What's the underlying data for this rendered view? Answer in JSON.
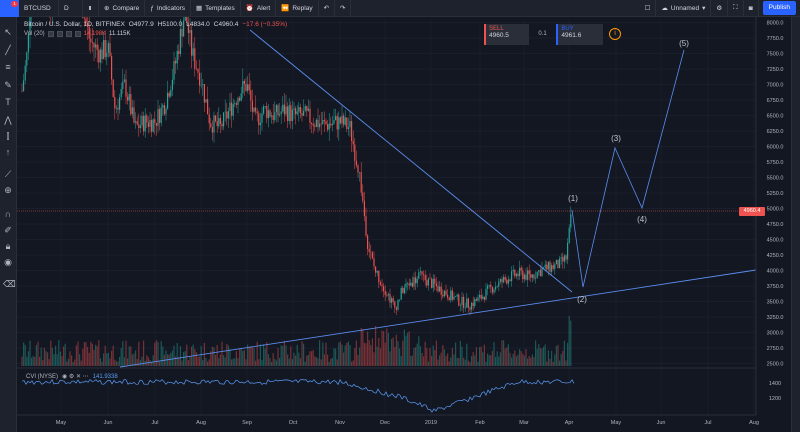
{
  "toolbar": {
    "logo_badge": "1",
    "symbol": "BTCUSD",
    "interval": "D",
    "compare": "Compare",
    "indicators": "Indicators",
    "templates": "Templates",
    "alert": "Alert",
    "replay": "Replay",
    "layout_name": "Unnamed",
    "publish": "Publish"
  },
  "legend": {
    "title": "Bitcoin / U.S. Dollar, 1D, BITFINEX",
    "o": "O4977.9",
    "h": "H5100.0",
    "l": "L4834.0",
    "c": "C4960.4",
    "change": "−17.6 (−0.35%)"
  },
  "vol_legend": {
    "label": "Vol (20)",
    "v1": "14.198K",
    "v2": "11.115K"
  },
  "cvi_legend": {
    "label": "CVI (NYSE)",
    "value": "141.9338"
  },
  "trade": {
    "sell_label": "SELL",
    "sell_price": "4960.5",
    "qty": "0.1",
    "buy_label": "BUY",
    "buy_price": "4961.6"
  },
  "price_label": "4960.4",
  "waves": [
    "(1)",
    "(2)",
    "(3)",
    "(4)",
    "(5)"
  ],
  "price_axis": [
    "8000.0",
    "7750.0",
    "7500.0",
    "7250.0",
    "7000.0",
    "6750.0",
    "6500.0",
    "6250.0",
    "6000.0",
    "5750.0",
    "5500.0",
    "5250.0",
    "5000.0",
    "4750.0",
    "4500.0",
    "4250.0",
    "4000.0",
    "3750.0",
    "3500.0",
    "3250.0",
    "3000.0",
    "2750.0",
    "2500.0"
  ],
  "cvi_axis": [
    "1400",
    "1200"
  ],
  "time_axis": [
    "May",
    "Jun",
    "Jul",
    "Aug",
    "Sep",
    "Oct",
    "Nov",
    "Dec",
    "2019",
    "Feb",
    "Mar",
    "Apr",
    "May",
    "Jun",
    "Jul",
    "Aug"
  ],
  "colors": {
    "up": "#26a69a",
    "down": "#ef5350",
    "trend": "#5b8def",
    "bg": "#131722"
  },
  "icons": [
    "cursor-icon",
    "trendline-icon",
    "fib-icon",
    "brush-icon",
    "text-icon",
    "pattern-icon",
    "measure-icon",
    "arrow-icon",
    "ruler-icon",
    "zoom-icon",
    "magnet-icon",
    "lock-icon",
    "visibility-icon",
    "trash-icon"
  ]
}
